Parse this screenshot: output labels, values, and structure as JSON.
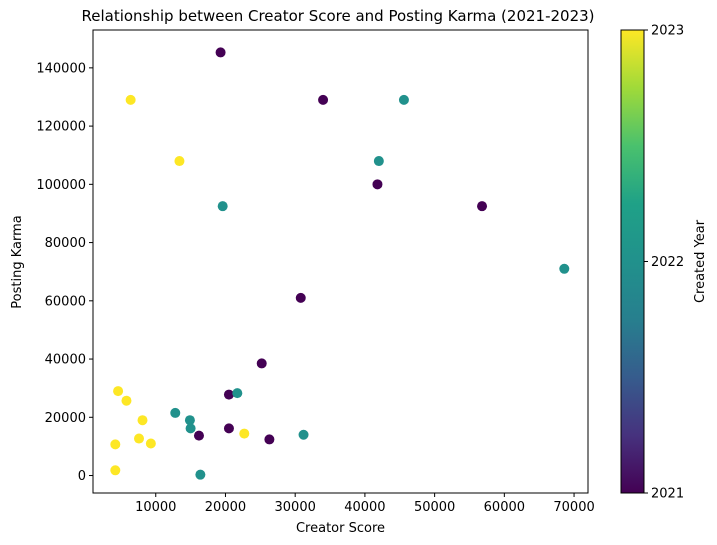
{
  "chart_data": {
    "type": "scatter",
    "title": "Relationship between Creator Score and Posting Karma (2021-2023)",
    "xlabel": "Creator Score",
    "ylabel": "Posting Karma",
    "xlim": [
      1000,
      72000
    ],
    "ylim": [
      -6000,
      153000
    ],
    "xticks": [
      10000,
      20000,
      30000,
      40000,
      50000,
      60000,
      70000
    ],
    "yticks": [
      0,
      20000,
      40000,
      60000,
      80000,
      100000,
      120000,
      140000
    ],
    "grid": false,
    "colorbar": {
      "label": "Created Year",
      "colormap": "viridis",
      "range": [
        2021,
        2023
      ],
      "ticks": [
        2021,
        2022,
        2023
      ]
    },
    "points": [
      {
        "x": 19300,
        "y": 145300,
        "year": 2021
      },
      {
        "x": 34000,
        "y": 129000,
        "year": 2021
      },
      {
        "x": 41800,
        "y": 100000,
        "year": 2021
      },
      {
        "x": 56800,
        "y": 92500,
        "year": 2021
      },
      {
        "x": 30800,
        "y": 61000,
        "year": 2021
      },
      {
        "x": 25200,
        "y": 38500,
        "year": 2021
      },
      {
        "x": 20500,
        "y": 27800,
        "year": 2021
      },
      {
        "x": 20500,
        "y": 16200,
        "year": 2021
      },
      {
        "x": 16200,
        "y": 13700,
        "year": 2021
      },
      {
        "x": 26300,
        "y": 12400,
        "year": 2021
      },
      {
        "x": 45600,
        "y": 129000,
        "year": 2022
      },
      {
        "x": 42000,
        "y": 108000,
        "year": 2022
      },
      {
        "x": 19600,
        "y": 92500,
        "year": 2022
      },
      {
        "x": 68600,
        "y": 71000,
        "year": 2022
      },
      {
        "x": 21700,
        "y": 28300,
        "year": 2022
      },
      {
        "x": 12800,
        "y": 21500,
        "year": 2022
      },
      {
        "x": 14900,
        "y": 19000,
        "year": 2022
      },
      {
        "x": 15000,
        "y": 16200,
        "year": 2022
      },
      {
        "x": 31200,
        "y": 14000,
        "year": 2022
      },
      {
        "x": 16400,
        "y": 300,
        "year": 2022
      },
      {
        "x": 6400,
        "y": 129000,
        "year": 2023
      },
      {
        "x": 13400,
        "y": 108000,
        "year": 2023
      },
      {
        "x": 4600,
        "y": 29000,
        "year": 2023
      },
      {
        "x": 5800,
        "y": 25700,
        "year": 2023
      },
      {
        "x": 8100,
        "y": 19000,
        "year": 2023
      },
      {
        "x": 22700,
        "y": 14400,
        "year": 2023
      },
      {
        "x": 7600,
        "y": 12700,
        "year": 2023
      },
      {
        "x": 9300,
        "y": 11000,
        "year": 2023
      },
      {
        "x": 4200,
        "y": 10700,
        "year": 2023
      },
      {
        "x": 4200,
        "y": 1800,
        "year": 2023
      }
    ]
  }
}
